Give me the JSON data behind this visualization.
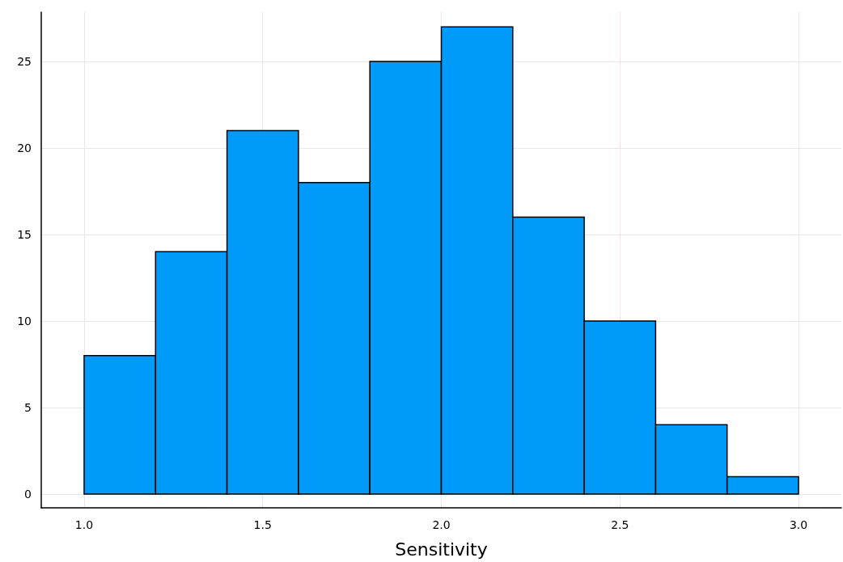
{
  "chart_data": {
    "type": "histogram",
    "xlabel": "Sensitivity",
    "bins": [
      1.0,
      1.2,
      1.4,
      1.6,
      1.8,
      2.0,
      2.2,
      2.4,
      2.6,
      2.8,
      3.0
    ],
    "values": [
      8,
      14,
      21,
      18,
      25,
      27,
      16,
      10,
      4,
      1
    ],
    "color": "#009af9",
    "xlim": [
      0.88,
      3.12
    ],
    "xticks": [
      {
        "value": 1,
        "label": "1.0"
      },
      {
        "value": 1.5,
        "label": "1.5"
      },
      {
        "value": 2,
        "label": "2.0"
      },
      {
        "value": 2.5,
        "label": "2.5"
      },
      {
        "value": 3,
        "label": "3.0"
      }
    ],
    "ylim": [
      -0.8,
      27.85
    ],
    "yticks": [
      0,
      5,
      10,
      15,
      20,
      25
    ],
    "grid": true
  }
}
